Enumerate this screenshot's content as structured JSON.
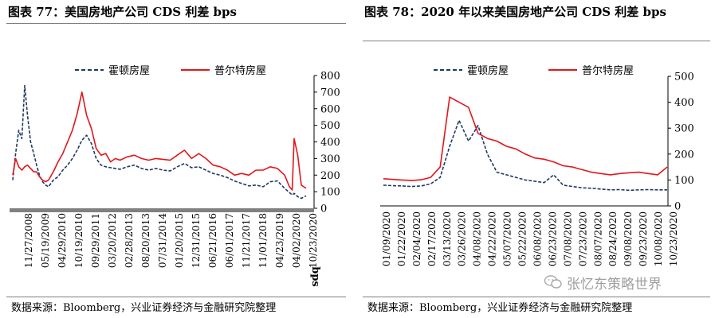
{
  "left": {
    "title": "图表 77：美国房地产公司 CDS 利差  bps",
    "source": "数据来源：Bloomberg，兴业证券经济与金融研究院整理"
  },
  "right": {
    "title": "图表 78：2020 年以来美国房地产公司 CDS 利差 bps",
    "source": "数据来源：Bloomberg，兴业证券经济与金融研究院整理"
  },
  "watermark": {
    "text": "张忆东策略世界"
  },
  "chart_data": [
    {
      "type": "line",
      "title": "图表 77：美国房地产公司 CDS 利差  bps",
      "ylabel": "bps",
      "ylim": [
        0,
        800
      ],
      "yticks": [
        0,
        100,
        200,
        300,
        400,
        500,
        600,
        700,
        800
      ],
      "xticks": [
        "11/27/2008",
        "05/19/2009",
        "04/29/2010",
        "10/19/2010",
        "09/29/2011",
        "03/20/2012",
        "02/28/2013",
        "08/20/2013",
        "07/31/2014",
        "01/20/2015",
        "12/31/2015",
        "06/21/2016",
        "06/01/2017",
        "11/21/2017",
        "11/01/2018",
        "04/23/2019",
        "04/02/2020",
        "10/23/2020"
      ],
      "legend_position": "top",
      "x": [
        2008.5,
        2008.62,
        2008.75,
        2008.88,
        2009.0,
        2009.12,
        2009.25,
        2009.38,
        2009.5,
        2009.62,
        2009.75,
        2009.88,
        2010.0,
        2010.2,
        2010.4,
        2010.6,
        2010.8,
        2011.0,
        2011.2,
        2011.4,
        2011.6,
        2011.8,
        2012.0,
        2012.2,
        2012.4,
        2012.6,
        2012.8,
        2013.0,
        2013.3,
        2013.6,
        2013.9,
        2014.2,
        2014.5,
        2014.8,
        2015.1,
        2015.4,
        2015.7,
        2016.0,
        2016.3,
        2016.6,
        2016.9,
        2017.2,
        2017.5,
        2017.8,
        2018.1,
        2018.4,
        2018.7,
        2019.0,
        2019.3,
        2019.6,
        2019.9,
        2020.1,
        2020.22,
        2020.3,
        2020.45,
        2020.6,
        2020.8
      ],
      "series": [
        {
          "name": "霍顿房屋",
          "color": "#1f3864",
          "dash": "dashed",
          "values": [
            170,
            330,
            470,
            420,
            740,
            560,
            400,
            330,
            260,
            200,
            160,
            140,
            130,
            170,
            190,
            230,
            260,
            300,
            350,
            410,
            440,
            390,
            300,
            260,
            250,
            245,
            240,
            235,
            250,
            260,
            240,
            230,
            240,
            230,
            225,
            250,
            270,
            245,
            250,
            230,
            210,
            200,
            185,
            165,
            150,
            135,
            140,
            130,
            160,
            165,
            120,
            95,
            80,
            90,
            70,
            60,
            75
          ]
        },
        {
          "name": "普尔特房屋",
          "color": "#e3161c",
          "dash": "solid",
          "values": [
            200,
            300,
            250,
            230,
            250,
            260,
            240,
            220,
            220,
            190,
            170,
            160,
            170,
            220,
            280,
            330,
            400,
            470,
            570,
            700,
            560,
            480,
            360,
            320,
            330,
            280,
            300,
            290,
            310,
            320,
            300,
            290,
            300,
            295,
            290,
            320,
            350,
            300,
            330,
            300,
            260,
            250,
            230,
            200,
            210,
            200,
            230,
            230,
            250,
            240,
            200,
            130,
            110,
            420,
            320,
            140,
            120
          ]
        }
      ]
    },
    {
      "type": "line",
      "title": "图表 78：2020 年以来美国房地产公司 CDS 利差 bps",
      "ylim": [
        0,
        500
      ],
      "yticks": [
        0,
        100,
        200,
        300,
        400,
        500
      ],
      "xticks": [
        "01/09/2020",
        "01/22/2020",
        "02/04/2020",
        "02/17/2020",
        "03/13/2020",
        "03/26/2020",
        "04/08/2020",
        "04/22/2020",
        "05/07/2020",
        "05/22/2020",
        "06/08/2020",
        "06/23/2020",
        "07/08/2020",
        "07/23/2020",
        "08/07/2020",
        "08/24/2020",
        "09/08/2020",
        "09/23/2020",
        "10/08/2020",
        "10/23/2020"
      ],
      "legend_position": "top",
      "series": [
        {
          "name": "霍顿房屋",
          "color": "#1f3864",
          "dash": "dashed",
          "values": [
            80,
            78,
            77,
            75,
            77,
            85,
            110,
            230,
            330,
            250,
            310,
            200,
            130,
            120,
            110,
            100,
            95,
            90,
            120,
            80,
            75,
            70,
            68,
            65,
            62,
            63,
            60,
            62,
            63,
            62,
            62
          ]
        },
        {
          "name": "普尔特房屋",
          "color": "#e3161c",
          "dash": "solid",
          "values": [
            105,
            102,
            100,
            98,
            101,
            110,
            150,
            420,
            400,
            380,
            280,
            260,
            250,
            230,
            220,
            200,
            185,
            180,
            170,
            155,
            150,
            140,
            130,
            125,
            120,
            125,
            128,
            130,
            125,
            120,
            150
          ]
        }
      ]
    }
  ]
}
